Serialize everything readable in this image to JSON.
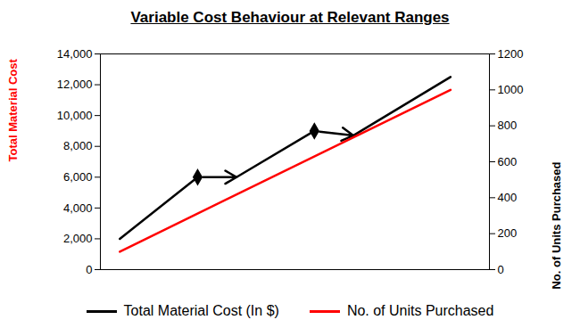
{
  "chart_data": {
    "type": "line",
    "title": "Variable Cost Behaviour at Relevant Ranges",
    "ylabel": "Total Material Cost",
    "y2label": "No. of Units Purchased",
    "xlim": [
      0,
      10
    ],
    "xticks": [],
    "ylim": [
      0,
      14000
    ],
    "yticks": [
      0,
      {
        "value": 2000,
        "label": "2,000"
      },
      {
        "value": 4000,
        "label": "4,000"
      },
      {
        "value": 6000,
        "label": "6,000"
      },
      {
        "value": 8000,
        "label": "8,000"
      },
      {
        "value": 10000,
        "label": "10,000"
      },
      {
        "value": 12000,
        "label": "12,000"
      },
      {
        "value": 14000,
        "label": "14,000"
      }
    ],
    "y2lim": [
      0,
      1200
    ],
    "y2ticks": [
      0,
      200,
      400,
      600,
      800,
      1000,
      1200
    ],
    "grid": false,
    "legend": "bottom",
    "series": [
      {
        "name": "Total Material Cost (In $)",
        "color": "#000000",
        "marker": "diamond",
        "x": [
          0.5,
          2.5,
          3.5,
          5.5,
          6.5,
          9
        ],
        "values": [
          2000,
          6000,
          6000,
          9000,
          8700,
          12500
        ]
      },
      {
        "name": "No. of Units Purchased",
        "color": "#ff0000",
        "axis": "y2",
        "x": [
          0.5,
          9
        ],
        "values": [
          100,
          1000
        ]
      }
    ]
  }
}
